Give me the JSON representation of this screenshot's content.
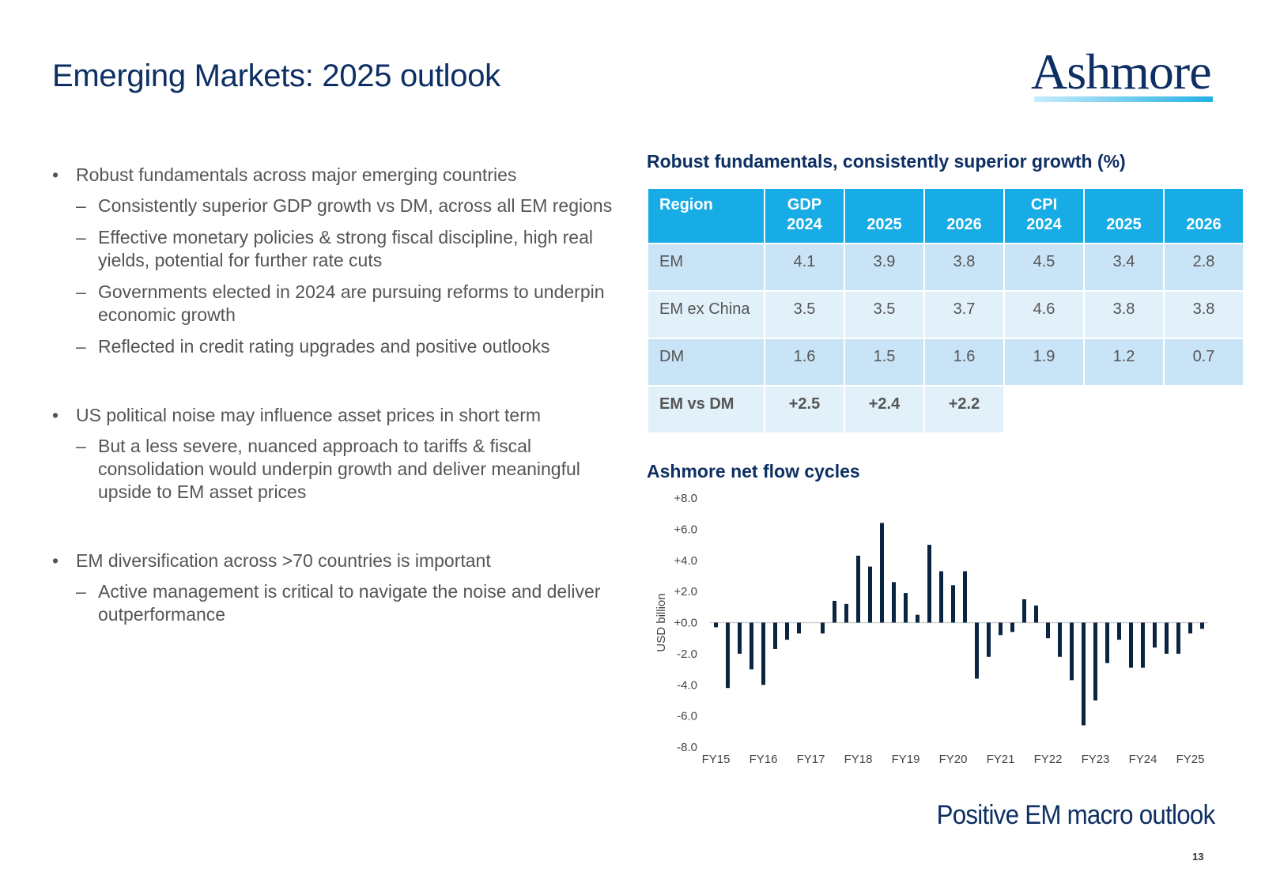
{
  "title": "Emerging Markets: 2025 outlook",
  "logo": "Ashmore",
  "bullets": [
    {
      "text": "Robust fundamentals across major emerging countries",
      "subs": [
        "Consistently superior GDP growth vs DM, across all EM regions",
        "Effective monetary policies & strong fiscal discipline, high real yields, potential for further rate cuts",
        "Governments elected in 2024 are pursuing reforms to underpin economic growth",
        "Reflected in credit rating upgrades and positive outlooks"
      ]
    },
    {
      "text": "US political noise may influence asset prices in short term",
      "subs": [
        "But a less severe, nuanced approach to tariffs & fiscal consolidation would underpin growth and deliver meaningful upside to EM asset prices"
      ]
    },
    {
      "text": "EM diversification across >70 countries is important",
      "subs": [
        "Active management is critical to navigate the noise and deliver outperformance"
      ]
    }
  ],
  "table": {
    "title": "Robust fundamentals, consistently superior growth (%)",
    "headers": [
      {
        "top": "",
        "bottom": "Region"
      },
      {
        "top": "GDP",
        "bottom": "2024"
      },
      {
        "top": "",
        "bottom": "2025"
      },
      {
        "top": "",
        "bottom": "2026"
      },
      {
        "top": "CPI",
        "bottom": "2024"
      },
      {
        "top": "",
        "bottom": "2025"
      },
      {
        "top": "",
        "bottom": "2026"
      }
    ],
    "rows": [
      {
        "region": "EM",
        "values": [
          "4.1",
          "3.9",
          "3.8",
          "4.5",
          "3.4",
          "2.8"
        ]
      },
      {
        "region": "EM ex China",
        "values": [
          "3.5",
          "3.5",
          "3.7",
          "4.6",
          "3.8",
          "3.8"
        ]
      },
      {
        "region": "DM",
        "values": [
          "1.6",
          "1.5",
          "1.6",
          "1.9",
          "1.2",
          "0.7"
        ]
      },
      {
        "region": "EM vs DM",
        "values": [
          "+2.5",
          "+2.4",
          "+2.2",
          "",
          "",
          ""
        ]
      }
    ]
  },
  "chart_data": {
    "type": "bar",
    "title": "Ashmore net flow cycles",
    "ylabel": "USD billion",
    "xlabel": "",
    "ylim": [
      -8,
      8
    ],
    "yticks": [
      "+8.0",
      "+6.0",
      "+4.0",
      "+2.0",
      "+0.0",
      "-2.0",
      "-4.0",
      "-6.0",
      "-8.0"
    ],
    "xticks": [
      "FY15",
      "FY16",
      "FY17",
      "FY18",
      "FY19",
      "FY20",
      "FY21",
      "FY22",
      "FY23",
      "FY24",
      "FY25"
    ],
    "values": [
      -0.3,
      -4.2,
      -2.0,
      -3.0,
      -4.0,
      -1.7,
      -1.1,
      -0.7,
      0.0,
      -0.7,
      1.4,
      1.2,
      4.3,
      3.6,
      6.4,
      2.6,
      1.9,
      0.5,
      5.0,
      3.3,
      2.4,
      3.3,
      -3.6,
      -2.2,
      -0.8,
      -0.6,
      1.5,
      1.1,
      -1.0,
      -2.2,
      -3.7,
      -6.6,
      -5.0,
      -2.6,
      -1.1,
      -2.9,
      -2.9,
      -1.6,
      -2.0,
      -2.0,
      -0.7,
      -0.4
    ],
    "grid": false,
    "color": "#0b2441"
  },
  "tagline": "Positive EM macro outlook",
  "page_number": "13",
  "colors": {
    "navy": "#0d2f63",
    "header_blue": "#17ace6",
    "row_dark": "#c9e4f6",
    "row_light": "#e2f0fa",
    "bar": "#0b2441"
  }
}
